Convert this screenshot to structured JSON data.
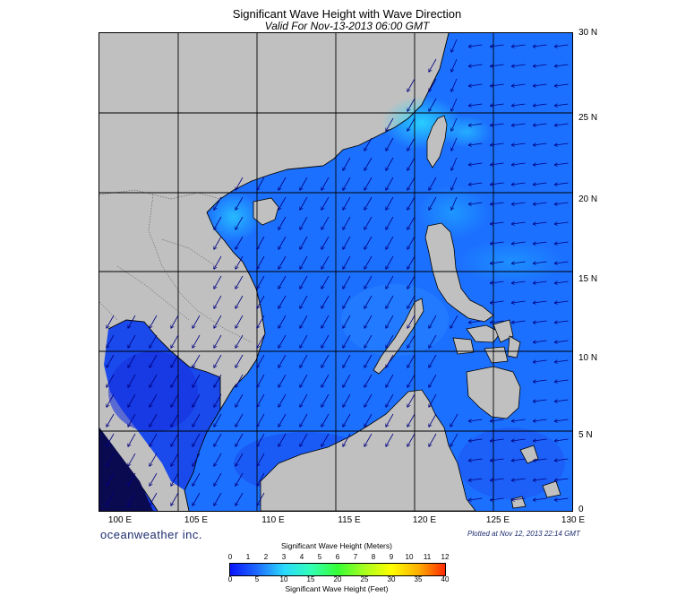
{
  "header": {
    "title": "Significant Wave Height with Wave Direction",
    "subtitle": "Valid For Nov-13-2013 06:00 GMT"
  },
  "map": {
    "region": "South China Sea",
    "lon_range": [
      100,
      130
    ],
    "lat_range": [
      0,
      30
    ],
    "lat_labels": [
      "30 N",
      "25 N",
      "20 N",
      "15 N",
      "10 N",
      "5 N",
      "0"
    ],
    "lon_labels": [
      "100 E",
      "105 E",
      "110 E",
      "115 E",
      "120 E",
      "125 E",
      "130 E"
    ],
    "gridlines": true,
    "colors": {
      "land": "#c0c0c0",
      "ocean_low": "#1a3cf0",
      "ocean_mid": "#1e78ff",
      "ocean_high": "#2ad8ff",
      "vector": "#000080"
    },
    "wave_direction_summary": "arrows pointing southwest across basin, westward in Philippine Sea"
  },
  "footer": {
    "brand": "oceanweather inc.",
    "plotted": "Plotted at Nov 12, 2013 22:14 GMT"
  },
  "legend": {
    "title": "Significant Wave Height (Meters)",
    "footer": "Significant Wave Height (Feet)",
    "meters_ticks": [
      "0",
      "1",
      "2",
      "3",
      "4",
      "5",
      "6",
      "7",
      "8",
      "9",
      "10",
      "11",
      "12"
    ],
    "feet_ticks": [
      "0",
      "5",
      "10",
      "15",
      "20",
      "25",
      "30",
      "35",
      "40"
    ],
    "colors": [
      "#0a14ff",
      "#1e6aff",
      "#2ad8ff",
      "#33ffb8",
      "#36ff36",
      "#a8ff1f",
      "#ffff00",
      "#ffb000",
      "#ff2a00"
    ]
  }
}
